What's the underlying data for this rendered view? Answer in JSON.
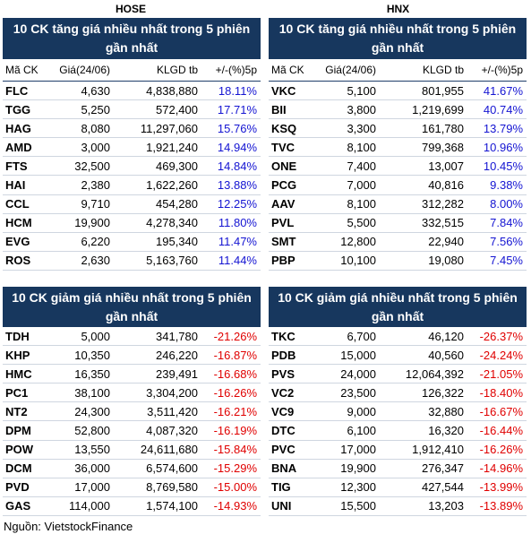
{
  "exchanges": {
    "left": "HOSE",
    "right": "HNX"
  },
  "gain_title": "10 CK tăng giá nhiều nhất trong 5 phiên gần nhất",
  "loss_title": "10 CK giảm giá nhiều nhất trong 5 phiên gần nhất",
  "columns": [
    "Mã CK",
    "Giá(24/06)",
    "KLGD tb",
    "+/-(%)5p"
  ],
  "colors": {
    "banner": "#17375e",
    "up": "#1414d2",
    "down": "#e00000"
  },
  "hose_gain": [
    [
      "FLC",
      "4,630",
      "4,838,880",
      "18.11%"
    ],
    [
      "TGG",
      "5,250",
      "572,400",
      "17.71%"
    ],
    [
      "HAG",
      "8,080",
      "11,297,060",
      "15.76%"
    ],
    [
      "AMD",
      "3,000",
      "1,921,240",
      "14.94%"
    ],
    [
      "FTS",
      "32,500",
      "469,300",
      "14.84%"
    ],
    [
      "HAI",
      "2,380",
      "1,622,260",
      "13.88%"
    ],
    [
      "CCL",
      "9,710",
      "454,280",
      "12.25%"
    ],
    [
      "HCM",
      "19,900",
      "4,278,340",
      "11.80%"
    ],
    [
      "EVG",
      "6,220",
      "195,340",
      "11.47%"
    ],
    [
      "ROS",
      "2,630",
      "5,163,760",
      "11.44%"
    ]
  ],
  "hnx_gain": [
    [
      "VKC",
      "5,100",
      "801,955",
      "41.67%"
    ],
    [
      "BII",
      "3,800",
      "1,219,699",
      "40.74%"
    ],
    [
      "KSQ",
      "3,300",
      "161,780",
      "13.79%"
    ],
    [
      "TVC",
      "8,100",
      "799,368",
      "10.96%"
    ],
    [
      "ONE",
      "7,400",
      "13,007",
      "10.45%"
    ],
    [
      "PCG",
      "7,000",
      "40,816",
      "9.38%"
    ],
    [
      "AAV",
      "8,100",
      "312,282",
      "8.00%"
    ],
    [
      "PVL",
      "5,500",
      "332,515",
      "7.84%"
    ],
    [
      "SMT",
      "12,800",
      "22,940",
      "7.56%"
    ],
    [
      "PBP",
      "10,100",
      "19,080",
      "7.45%"
    ]
  ],
  "hose_loss": [
    [
      "TDH",
      "5,000",
      "341,780",
      "-21.26%"
    ],
    [
      "KHP",
      "10,350",
      "246,220",
      "-16.87%"
    ],
    [
      "HMC",
      "16,350",
      "239,491",
      "-16.68%"
    ],
    [
      "PC1",
      "38,100",
      "3,304,200",
      "-16.26%"
    ],
    [
      "NT2",
      "24,300",
      "3,511,420",
      "-16.21%"
    ],
    [
      "DPM",
      "52,800",
      "4,087,320",
      "-16.19%"
    ],
    [
      "POW",
      "13,550",
      "24,611,680",
      "-15.84%"
    ],
    [
      "DCM",
      "36,000",
      "6,574,600",
      "-15.29%"
    ],
    [
      "PVD",
      "17,000",
      "8,769,580",
      "-15.00%"
    ],
    [
      "GAS",
      "114,000",
      "1,574,100",
      "-14.93%"
    ]
  ],
  "hnx_loss": [
    [
      "TKC",
      "6,700",
      "46,120",
      "-26.37%"
    ],
    [
      "PDB",
      "15,000",
      "40,560",
      "-24.24%"
    ],
    [
      "PVS",
      "24,000",
      "12,064,392",
      "-21.05%"
    ],
    [
      "VC2",
      "23,500",
      "126,322",
      "-18.40%"
    ],
    [
      "VC9",
      "9,000",
      "32,880",
      "-16.67%"
    ],
    [
      "DTC",
      "6,100",
      "16,320",
      "-16.44%"
    ],
    [
      "PVC",
      "17,000",
      "1,912,410",
      "-16.26%"
    ],
    [
      "BNA",
      "19,900",
      "276,347",
      "-14.96%"
    ],
    [
      "TIG",
      "12,300",
      "427,544",
      "-13.99%"
    ],
    [
      "UNI",
      "15,500",
      "13,203",
      "-13.89%"
    ]
  ],
  "source": "Nguồn: VietstockFinance"
}
